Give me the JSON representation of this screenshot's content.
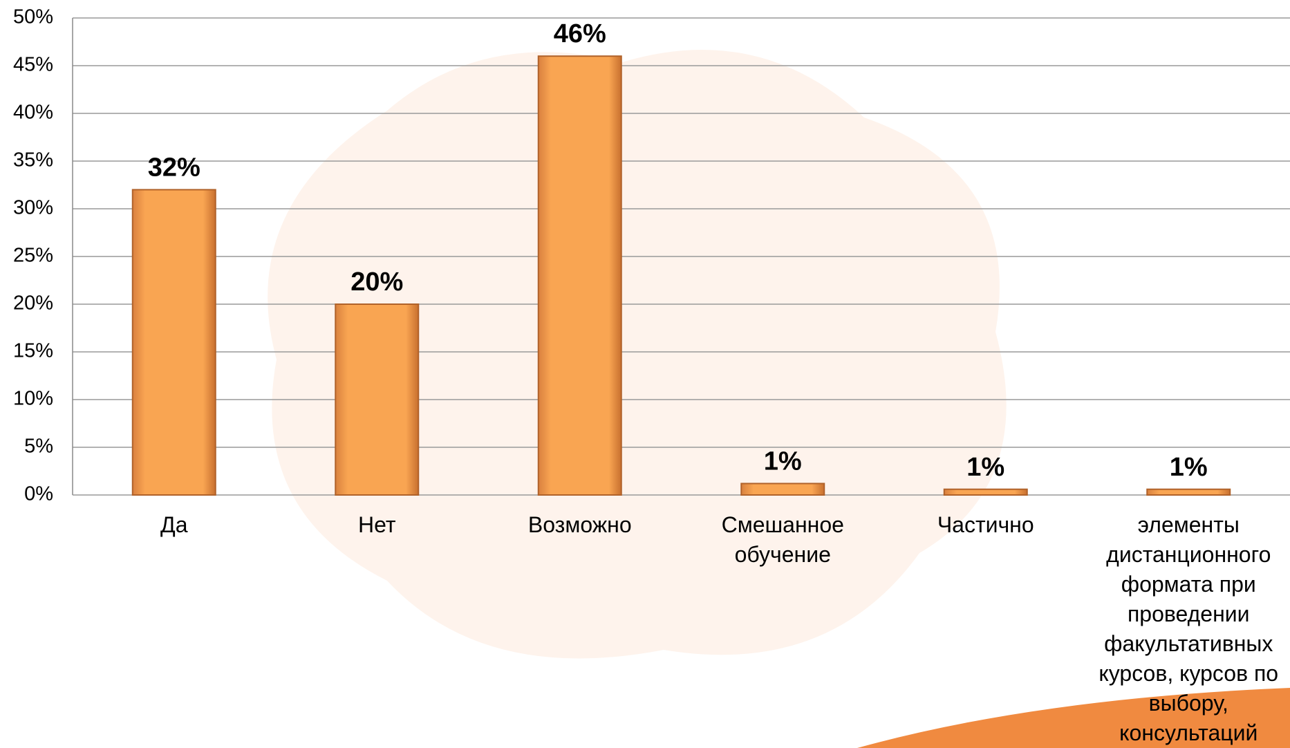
{
  "chart_data": {
    "type": "bar",
    "categories": [
      "Да",
      "Нет",
      "Возможно",
      "Смешанное обучение",
      "Частично",
      "элементы дистанционного формата при проведении факультативных курсов, курсов по выбору, консультаций"
    ],
    "values": [
      32,
      20,
      46,
      1.2,
      0.6,
      0.6
    ],
    "value_labels": [
      "32%",
      "20%",
      "46%",
      "1%",
      "1%",
      "1%"
    ],
    "color": "#f8a050",
    "ylim": [
      0,
      50
    ],
    "yticks": [
      {
        "value": 0,
        "label": "0%"
      },
      {
        "value": 5,
        "label": "5%"
      },
      {
        "value": 10,
        "label": "10%"
      },
      {
        "value": 15,
        "label": "15%"
      },
      {
        "value": 20,
        "label": "20%"
      },
      {
        "value": 25,
        "label": "25%"
      },
      {
        "value": 30,
        "label": "30%"
      },
      {
        "value": 35,
        "label": "35%"
      },
      {
        "value": 40,
        "label": "40%"
      },
      {
        "value": 45,
        "label": "45%"
      },
      {
        "value": 50,
        "label": "50%"
      }
    ],
    "grid": true
  }
}
